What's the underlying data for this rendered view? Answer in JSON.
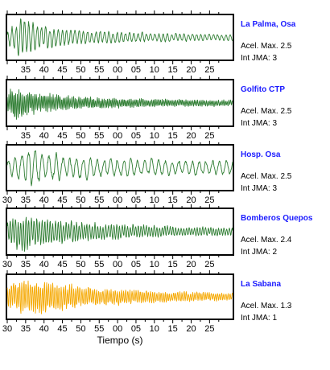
{
  "chart_data": {
    "type": "line",
    "xlabel": "Tiempo (s)",
    "x_tick_labels": [
      "30",
      "35",
      "40",
      "45",
      "50",
      "55",
      "00",
      "05",
      "10",
      "15",
      "20",
      "25"
    ],
    "panels": [
      {
        "station": "La Palma, Osa",
        "acel_label": "Acel. Max.",
        "acel": "2.5",
        "int_label": "Int JMA:",
        "int": "3",
        "color": "#2e7d32",
        "envelope": [
          {
            "t": 0,
            "amp": 0.35
          },
          {
            "t": 3,
            "amp": 0.95
          },
          {
            "t": 5,
            "amp": 1.0
          },
          {
            "t": 8,
            "amp": 0.6
          },
          {
            "t": 20,
            "amp": 0.35
          },
          {
            "t": 40,
            "amp": 0.22
          },
          {
            "t": 60,
            "amp": 0.15
          }
        ],
        "dominant_freq": 0.9
      },
      {
        "station": "Golfito CTP",
        "acel_label": "Acel. Max.",
        "acel": "2.5",
        "int_label": "Int JMA:",
        "int": "3",
        "color": "#2e7d32",
        "envelope": [
          {
            "t": 0,
            "amp": 0.45
          },
          {
            "t": 2,
            "amp": 0.9
          },
          {
            "t": 6,
            "amp": 0.55
          },
          {
            "t": 20,
            "amp": 0.3
          },
          {
            "t": 40,
            "amp": 0.2
          },
          {
            "t": 60,
            "amp": 0.15
          }
        ],
        "dominant_freq": 2.2
      },
      {
        "station": "Hosp. Osa",
        "acel_label": "Acel. Max.",
        "acel": "2.5",
        "int_label": "Int JMA:",
        "int": "3",
        "color": "#2e7d32",
        "envelope": [
          {
            "t": 0,
            "amp": 0.4
          },
          {
            "t": 6,
            "amp": 0.95
          },
          {
            "t": 10,
            "amp": 0.75
          },
          {
            "t": 25,
            "amp": 0.5
          },
          {
            "t": 45,
            "amp": 0.4
          },
          {
            "t": 60,
            "amp": 0.35
          }
        ],
        "dominant_freq": 0.55
      },
      {
        "station": "Bomberos Quepos",
        "acel_label": "Acel. Max.",
        "acel": "2.4",
        "int_label": "Int JMA:",
        "int": "2",
        "color": "#2e7d32",
        "envelope": [
          {
            "t": 0,
            "amp": 0.5
          },
          {
            "t": 4,
            "amp": 1.0
          },
          {
            "t": 8,
            "amp": 0.7
          },
          {
            "t": 25,
            "amp": 0.4
          },
          {
            "t": 45,
            "amp": 0.25
          },
          {
            "t": 60,
            "amp": 0.2
          }
        ],
        "dominant_freq": 1.4
      },
      {
        "station": "La Sabana",
        "acel_label": "Acel. Max.",
        "acel": "1.3",
        "int_label": "Int JMA:",
        "int": "1",
        "color": "#f5a800",
        "envelope": [
          {
            "t": 0,
            "amp": 0.5
          },
          {
            "t": 3,
            "amp": 0.9
          },
          {
            "t": 9,
            "amp": 0.85
          },
          {
            "t": 20,
            "amp": 0.5
          },
          {
            "t": 40,
            "amp": 0.3
          },
          {
            "t": 60,
            "amp": 0.2
          }
        ],
        "dominant_freq": 1.8
      }
    ]
  }
}
